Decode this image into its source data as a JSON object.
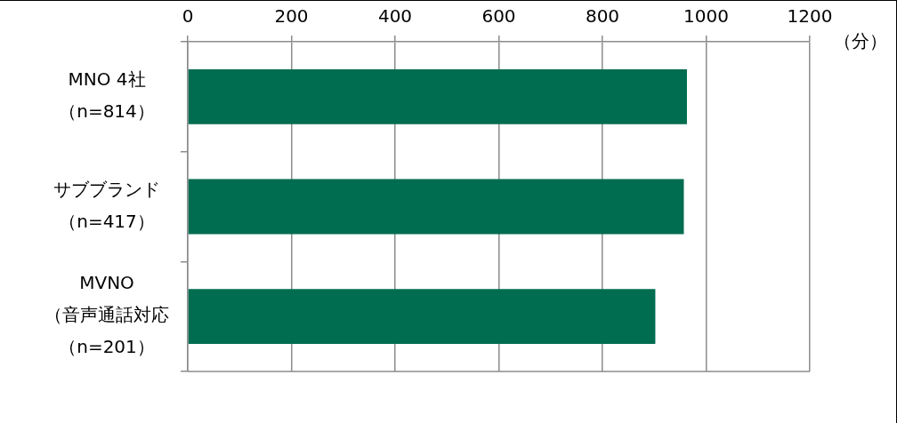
{
  "chart_data": {
    "type": "bar",
    "orientation": "horizontal",
    "categories": [
      "MNO 4社（n=814）",
      "サブブランド（n=417）",
      "MVNO（音声通話対応（n=201）"
    ],
    "values": [
      963,
      957,
      902
    ],
    "color": "#006c50",
    "xlabel": "（分）",
    "xlim": [
      0,
      1200
    ],
    "xticks": [
      0,
      200,
      400,
      600,
      800,
      1000,
      1200
    ],
    "grid": "x"
  }
}
